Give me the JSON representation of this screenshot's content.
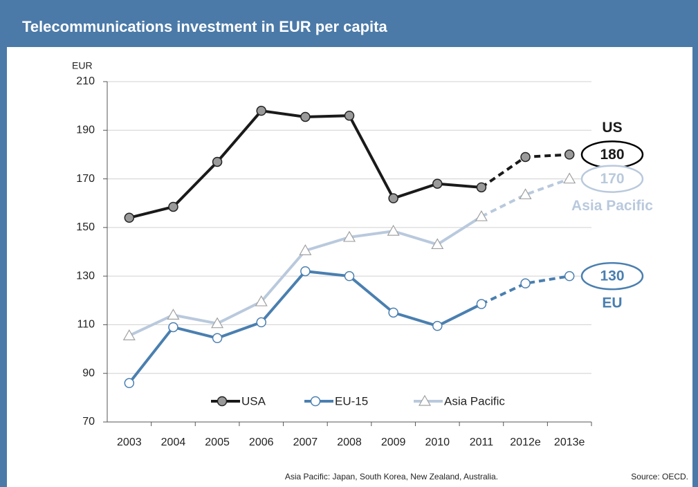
{
  "chart_data": {
    "type": "line",
    "title": "Telecommunications investment in EUR per capita",
    "y_axis_label": "EUR",
    "categories": [
      "2003",
      "2004",
      "2005",
      "2006",
      "2007",
      "2008",
      "2009",
      "2010",
      "2011",
      "2012e",
      "2013e"
    ],
    "dashed_from_index": 8,
    "series": [
      {
        "name": "USA",
        "color": "#1a1a1a",
        "marker": "circle",
        "marker_fill": "#9a9a9a",
        "end_tag": "US",
        "tag_position": "above",
        "values": [
          154,
          158.5,
          177,
          198,
          195.5,
          196,
          162,
          168,
          166.5,
          179,
          180
        ]
      },
      {
        "name": "EU-15",
        "color": "#4a7fb0",
        "marker": "circle",
        "marker_fill": "#ffffff",
        "end_tag": "EU",
        "tag_position": "below",
        "values": [
          86,
          109,
          104.5,
          111,
          132,
          130,
          115,
          109.5,
          118.5,
          127,
          130
        ]
      },
      {
        "name": "Asia Pacific",
        "color": "#b9c9dd",
        "marker": "triangle",
        "marker_fill": "#ffffff",
        "end_tag": "Asia Pacific",
        "tag_position": "below",
        "values": [
          105.5,
          114,
          110.5,
          119.5,
          140.5,
          146,
          148.5,
          143,
          154.5,
          163.5,
          170
        ]
      }
    ],
    "ylim": [
      70,
      210
    ],
    "yticks": [
      70,
      90,
      110,
      130,
      150,
      170,
      190,
      210
    ],
    "grid": true,
    "footnote": "Asia Pacific: Japan, South Korea, New Zealand, Australia.",
    "source": "Source: OECD."
  }
}
